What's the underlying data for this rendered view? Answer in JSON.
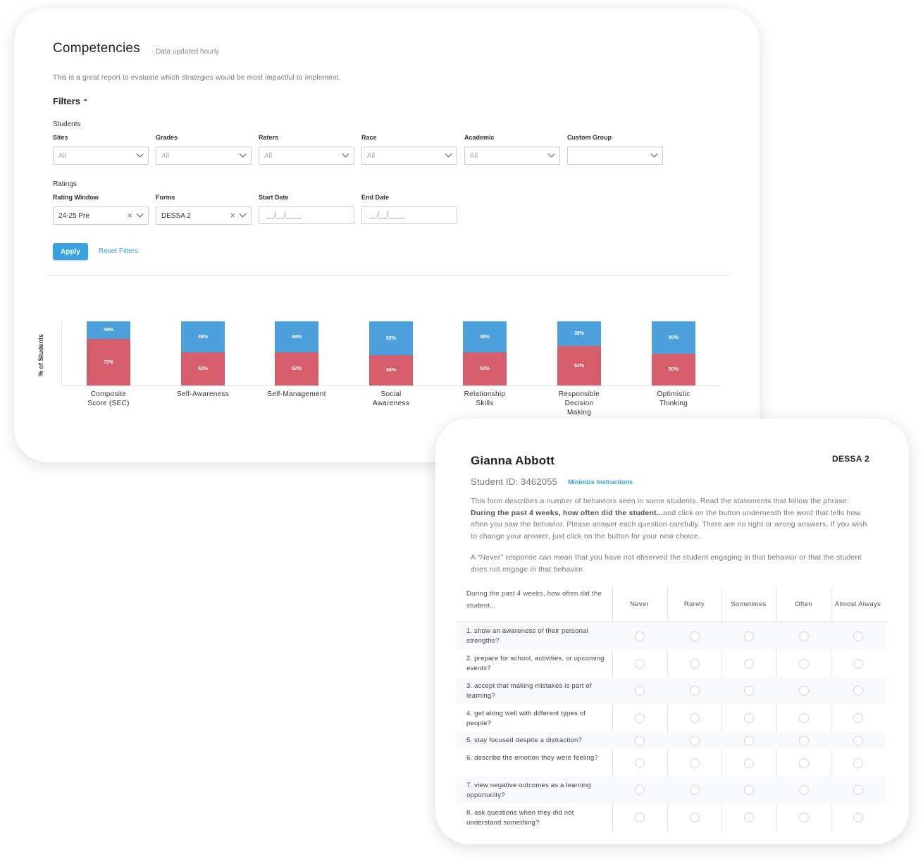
{
  "report": {
    "title": "Competencies",
    "subtitle": "- Data updated hourly",
    "description": "This is a great report to evaluate which strategies would be most impactful to implement.",
    "filters_label": "Filters",
    "filters_icon": "chevron-up-icon",
    "students_section": "Students",
    "student_filters": [
      {
        "label": "Sites",
        "value": "All"
      },
      {
        "label": "Grades",
        "value": "All"
      },
      {
        "label": "Raters",
        "value": "All"
      },
      {
        "label": "Race",
        "value": "All"
      },
      {
        "label": "Academic",
        "value": "All"
      },
      {
        "label": "Custom Group",
        "value": ""
      }
    ],
    "ratings_section": "Ratings",
    "rating_filters": {
      "rating_window": {
        "label": "Rating Window",
        "value": "24-25 Pre"
      },
      "forms": {
        "label": "Forms",
        "value": "DESSA 2"
      },
      "start_date": {
        "label": "Start Date",
        "placeholder": "__/__/____"
      },
      "end_date": {
        "label": "End Date",
        "placeholder": "__/__/____"
      }
    },
    "apply_label": "Apply",
    "reset_label": "Reset Filters"
  },
  "chart_data": {
    "type": "bar",
    "stacked": true,
    "ylabel": "% of Students",
    "categories": [
      "Composite\nScore (SEC)",
      "Self-Awareness",
      "Self-Management",
      "Social\nAwareness",
      "Relationship\nSkills",
      "Responsible\nDecision\nMaking",
      "Optimistic\nThinking"
    ],
    "series": [
      {
        "values": [
          28,
          48,
          48,
          53,
          48,
          38,
          50
        ],
        "labels": [
          "28%",
          "48%",
          "48%",
          "53%",
          "48%",
          "38%",
          "50%"
        ],
        "color": "#4ea0dd"
      },
      {
        "values": [
          72,
          52,
          52,
          46,
          52,
          62,
          50
        ],
        "labels": [
          "72%",
          "52%",
          "52%",
          "46%",
          "52%",
          "62%",
          "50%"
        ],
        "color": "#d65d6c"
      }
    ],
    "ylim": [
      0,
      100
    ]
  },
  "form": {
    "student_name": "Gianna Abbott",
    "form_name": "DESSA 2",
    "student_id": "Student ID: 3462055",
    "minimize_label": "Minimize Instructions",
    "instructions_before": "This form describes a number of behaviors seen in some students. Read the statements that follow the phrase: ",
    "instructions_bold": "During the past 4 weeks, how often did the student...",
    "instructions_after": "and click on the button underneath the word that tells how often you saw the behavior. Please answer each question carefully. There are no right or wrong answers. If you wish to change your answer, just click on the button for your new choice.",
    "never_note": "A “Never” response can mean that you have not observed the student engaging in that behavior or that the student does not engage in that behavior.",
    "question_header": "During the past 4 weeks, how often did the student...",
    "options": [
      "Never",
      "Rarely",
      "Sometimes",
      "Often",
      "Almost Always"
    ],
    "questions": [
      "1. show an awareness of their personal strengths?",
      "2. prepare for school, activities, or upcoming events?",
      "3. accept that making mistakes is part of learning?",
      "4. get along well with different types of people?",
      "5. stay focused despite a distraction?",
      "6. describe the emotion they were feeling?",
      "7. view negative outcomes as a learning opportunity?",
      "8. ask questions when they did not understand something?"
    ]
  }
}
